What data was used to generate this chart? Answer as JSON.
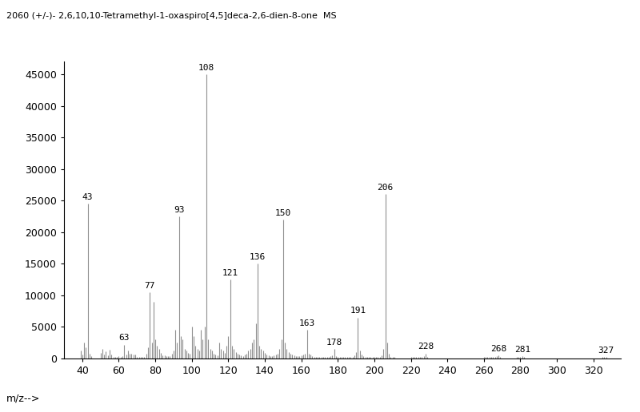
{
  "title": "2060 (+/-)- 2,6,10,10-Tetramethyl-1-oxaspiro[4,5]deca-2,6-dien-8-one  MS",
  "xlabel": "m/z-->",
  "ylabel": "",
  "xlim": [
    30,
    335
  ],
  "ylim": [
    0,
    47000
  ],
  "yticks": [
    0,
    5000,
    10000,
    15000,
    20000,
    25000,
    30000,
    35000,
    40000,
    45000
  ],
  "xticks": [
    40,
    60,
    80,
    100,
    120,
    140,
    160,
    180,
    200,
    220,
    240,
    260,
    280,
    300,
    320
  ],
  "background_color": "#ffffff",
  "line_color": "#909090",
  "labeled_peaks": {
    "43": 24500,
    "63": 2200,
    "77": 10500,
    "93": 22500,
    "108": 45000,
    "121": 12500,
    "136": 15000,
    "150": 22000,
    "163": 4500,
    "178": 1500,
    "191": 6500,
    "206": 26000,
    "228": 800,
    "268": 500,
    "281": 400,
    "327": 200
  },
  "all_peaks": [
    [
      39,
      1200
    ],
    [
      40,
      600
    ],
    [
      41,
      2500
    ],
    [
      42,
      1800
    ],
    [
      43,
      24500
    ],
    [
      44,
      800
    ],
    [
      45,
      400
    ],
    [
      50,
      900
    ],
    [
      51,
      1500
    ],
    [
      52,
      600
    ],
    [
      53,
      1100
    ],
    [
      54,
      500
    ],
    [
      55,
      1400
    ],
    [
      56,
      600
    ],
    [
      57,
      300
    ],
    [
      58,
      200
    ],
    [
      59,
      200
    ],
    [
      60,
      400
    ],
    [
      61,
      300
    ],
    [
      62,
      400
    ],
    [
      63,
      2200
    ],
    [
      64,
      600
    ],
    [
      65,
      1200
    ],
    [
      66,
      700
    ],
    [
      67,
      700
    ],
    [
      68,
      600
    ],
    [
      69,
      600
    ],
    [
      70,
      300
    ],
    [
      71,
      200
    ],
    [
      72,
      200
    ],
    [
      73,
      200
    ],
    [
      74,
      200
    ],
    [
      75,
      700
    ],
    [
      76,
      1800
    ],
    [
      77,
      10500
    ],
    [
      78,
      2500
    ],
    [
      79,
      9000
    ],
    [
      80,
      3000
    ],
    [
      81,
      2000
    ],
    [
      82,
      1500
    ],
    [
      83,
      900
    ],
    [
      84,
      500
    ],
    [
      85,
      500
    ],
    [
      86,
      400
    ],
    [
      87,
      400
    ],
    [
      88,
      400
    ],
    [
      89,
      800
    ],
    [
      90,
      1200
    ],
    [
      91,
      4500
    ],
    [
      92,
      2500
    ],
    [
      93,
      22500
    ],
    [
      94,
      3500
    ],
    [
      95,
      3000
    ],
    [
      96,
      1500
    ],
    [
      97,
      1200
    ],
    [
      98,
      900
    ],
    [
      99,
      700
    ],
    [
      100,
      5000
    ],
    [
      101,
      3500
    ],
    [
      102,
      2000
    ],
    [
      103,
      1500
    ],
    [
      104,
      1200
    ],
    [
      105,
      4500
    ],
    [
      106,
      3000
    ],
    [
      107,
      5000
    ],
    [
      108,
      45000
    ],
    [
      109,
      3000
    ],
    [
      110,
      1500
    ],
    [
      111,
      1200
    ],
    [
      112,
      800
    ],
    [
      113,
      600
    ],
    [
      114,
      500
    ],
    [
      115,
      2500
    ],
    [
      116,
      1500
    ],
    [
      117,
      1200
    ],
    [
      118,
      900
    ],
    [
      119,
      2000
    ],
    [
      120,
      3500
    ],
    [
      121,
      12500
    ],
    [
      122,
      2000
    ],
    [
      123,
      1500
    ],
    [
      124,
      1000
    ],
    [
      125,
      800
    ],
    [
      126,
      600
    ],
    [
      127,
      500
    ],
    [
      128,
      400
    ],
    [
      129,
      600
    ],
    [
      130,
      800
    ],
    [
      131,
      1200
    ],
    [
      132,
      1500
    ],
    [
      133,
      2500
    ],
    [
      134,
      3000
    ],
    [
      135,
      5500
    ],
    [
      136,
      15000
    ],
    [
      137,
      2000
    ],
    [
      138,
      1500
    ],
    [
      139,
      1200
    ],
    [
      140,
      900
    ],
    [
      141,
      600
    ],
    [
      142,
      500
    ],
    [
      143,
      400
    ],
    [
      144,
      400
    ],
    [
      145,
      500
    ],
    [
      146,
      600
    ],
    [
      147,
      800
    ],
    [
      148,
      1500
    ],
    [
      149,
      3000
    ],
    [
      150,
      22000
    ],
    [
      151,
      2500
    ],
    [
      152,
      1500
    ],
    [
      153,
      1000
    ],
    [
      154,
      700
    ],
    [
      155,
      600
    ],
    [
      156,
      500
    ],
    [
      157,
      400
    ],
    [
      158,
      400
    ],
    [
      159,
      400
    ],
    [
      160,
      500
    ],
    [
      161,
      600
    ],
    [
      162,
      800
    ],
    [
      163,
      4500
    ],
    [
      164,
      700
    ],
    [
      165,
      600
    ],
    [
      166,
      400
    ],
    [
      167,
      300
    ],
    [
      168,
      300
    ],
    [
      169,
      300
    ],
    [
      170,
      300
    ],
    [
      171,
      300
    ],
    [
      172,
      300
    ],
    [
      173,
      300
    ],
    [
      174,
      300
    ],
    [
      175,
      300
    ],
    [
      176,
      400
    ],
    [
      177,
      500
    ],
    [
      178,
      1500
    ],
    [
      179,
      400
    ],
    [
      180,
      300
    ],
    [
      181,
      300
    ],
    [
      182,
      300
    ],
    [
      183,
      300
    ],
    [
      184,
      300
    ],
    [
      185,
      300
    ],
    [
      186,
      300
    ],
    [
      187,
      300
    ],
    [
      188,
      300
    ],
    [
      189,
      500
    ],
    [
      190,
      1000
    ],
    [
      191,
      6500
    ],
    [
      192,
      1200
    ],
    [
      193,
      600
    ],
    [
      194,
      400
    ],
    [
      195,
      300
    ],
    [
      196,
      300
    ],
    [
      197,
      300
    ],
    [
      198,
      300
    ],
    [
      199,
      300
    ],
    [
      200,
      300
    ],
    [
      201,
      300
    ],
    [
      202,
      300
    ],
    [
      203,
      300
    ],
    [
      204,
      500
    ],
    [
      205,
      1500
    ],
    [
      206,
      26000
    ],
    [
      207,
      2500
    ],
    [
      208,
      800
    ],
    [
      209,
      300
    ],
    [
      210,
      200
    ],
    [
      211,
      200
    ],
    [
      220,
      200
    ],
    [
      221,
      200
    ],
    [
      222,
      200
    ],
    [
      223,
      200
    ],
    [
      224,
      200
    ],
    [
      225,
      200
    ],
    [
      226,
      300
    ],
    [
      227,
      400
    ],
    [
      228,
      800
    ],
    [
      229,
      300
    ],
    [
      260,
      200
    ],
    [
      261,
      200
    ],
    [
      262,
      200
    ],
    [
      263,
      200
    ],
    [
      264,
      200
    ],
    [
      265,
      200
    ],
    [
      266,
      300
    ],
    [
      267,
      400
    ],
    [
      268,
      500
    ],
    [
      269,
      300
    ],
    [
      278,
      200
    ],
    [
      279,
      200
    ],
    [
      280,
      300
    ],
    [
      281,
      400
    ],
    [
      282,
      200
    ],
    [
      325,
      200
    ],
    [
      326,
      200
    ],
    [
      327,
      200
    ]
  ]
}
